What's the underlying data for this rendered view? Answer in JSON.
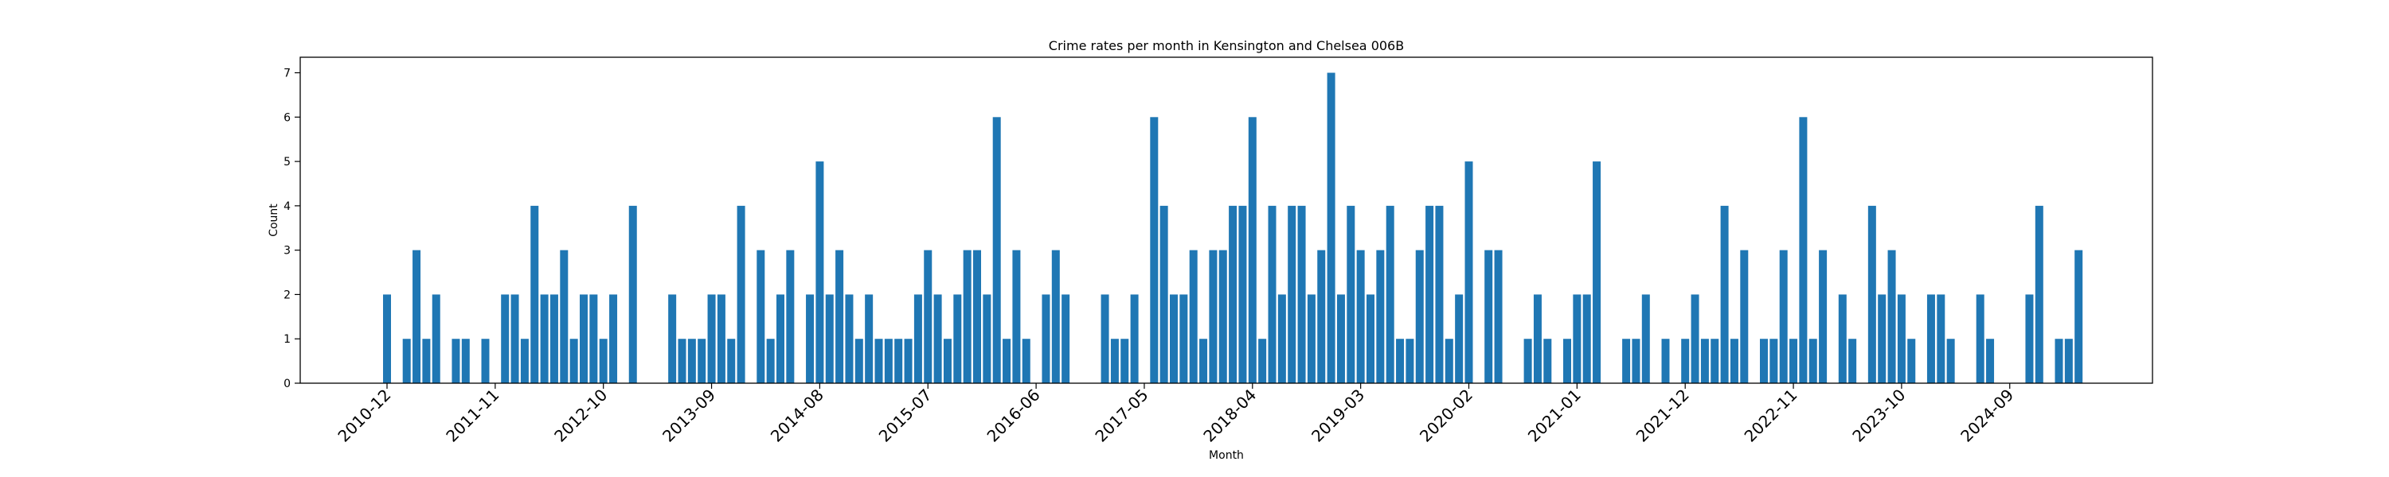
{
  "chart_data": {
    "type": "bar",
    "title": "Crime rates per month in Kensington and Chelsea 006B",
    "xlabel": "Month",
    "ylabel": "Count",
    "ylim": [
      0,
      7.35
    ],
    "yticks": [
      0,
      1,
      2,
      3,
      4,
      5,
      6,
      7
    ],
    "x_tick_labels": [
      "2010-12",
      "2011-11",
      "2012-10",
      "2013-09",
      "2014-08",
      "2015-07",
      "2016-06",
      "2017-05",
      "2018-04",
      "2019-03",
      "2020-02",
      "2021-01",
      "2021-12",
      "2022-11",
      "2023-10",
      "2024-09"
    ],
    "grid": false,
    "bar_color": "#1f77b4",
    "values": [
      2,
      0,
      1,
      3,
      1,
      2,
      0,
      1,
      1,
      0,
      1,
      0,
      2,
      2,
      1,
      4,
      2,
      2,
      3,
      1,
      2,
      2,
      1,
      2,
      0,
      4,
      0,
      0,
      0,
      2,
      1,
      1,
      1,
      2,
      2,
      1,
      4,
      0,
      3,
      1,
      2,
      3,
      0,
      2,
      5,
      2,
      3,
      2,
      1,
      2,
      1,
      1,
      1,
      1,
      2,
      3,
      2,
      1,
      2,
      3,
      3,
      2,
      6,
      1,
      3,
      1,
      0,
      2,
      3,
      2,
      0,
      0,
      0,
      2,
      1,
      1,
      2,
      0,
      6,
      4,
      2,
      2,
      3,
      1,
      3,
      3,
      4,
      4,
      6,
      1,
      4,
      2,
      4,
      4,
      2,
      3,
      7,
      2,
      4,
      3,
      2,
      3,
      4,
      1,
      1,
      3,
      4,
      4,
      1,
      2,
      5,
      0,
      3,
      3,
      0,
      0,
      1,
      2,
      1,
      0,
      1,
      2,
      2,
      5,
      0,
      0,
      1,
      1,
      2,
      0,
      1,
      0,
      1,
      2,
      1,
      1,
      4,
      1,
      3,
      0,
      1,
      1,
      3,
      1,
      6,
      1,
      3,
      0,
      2,
      1,
      0,
      4,
      2,
      3,
      2,
      1,
      0,
      2,
      2,
      1,
      0,
      0,
      2,
      1,
      0,
      0,
      0,
      2,
      4,
      0,
      1,
      1,
      3
    ]
  }
}
